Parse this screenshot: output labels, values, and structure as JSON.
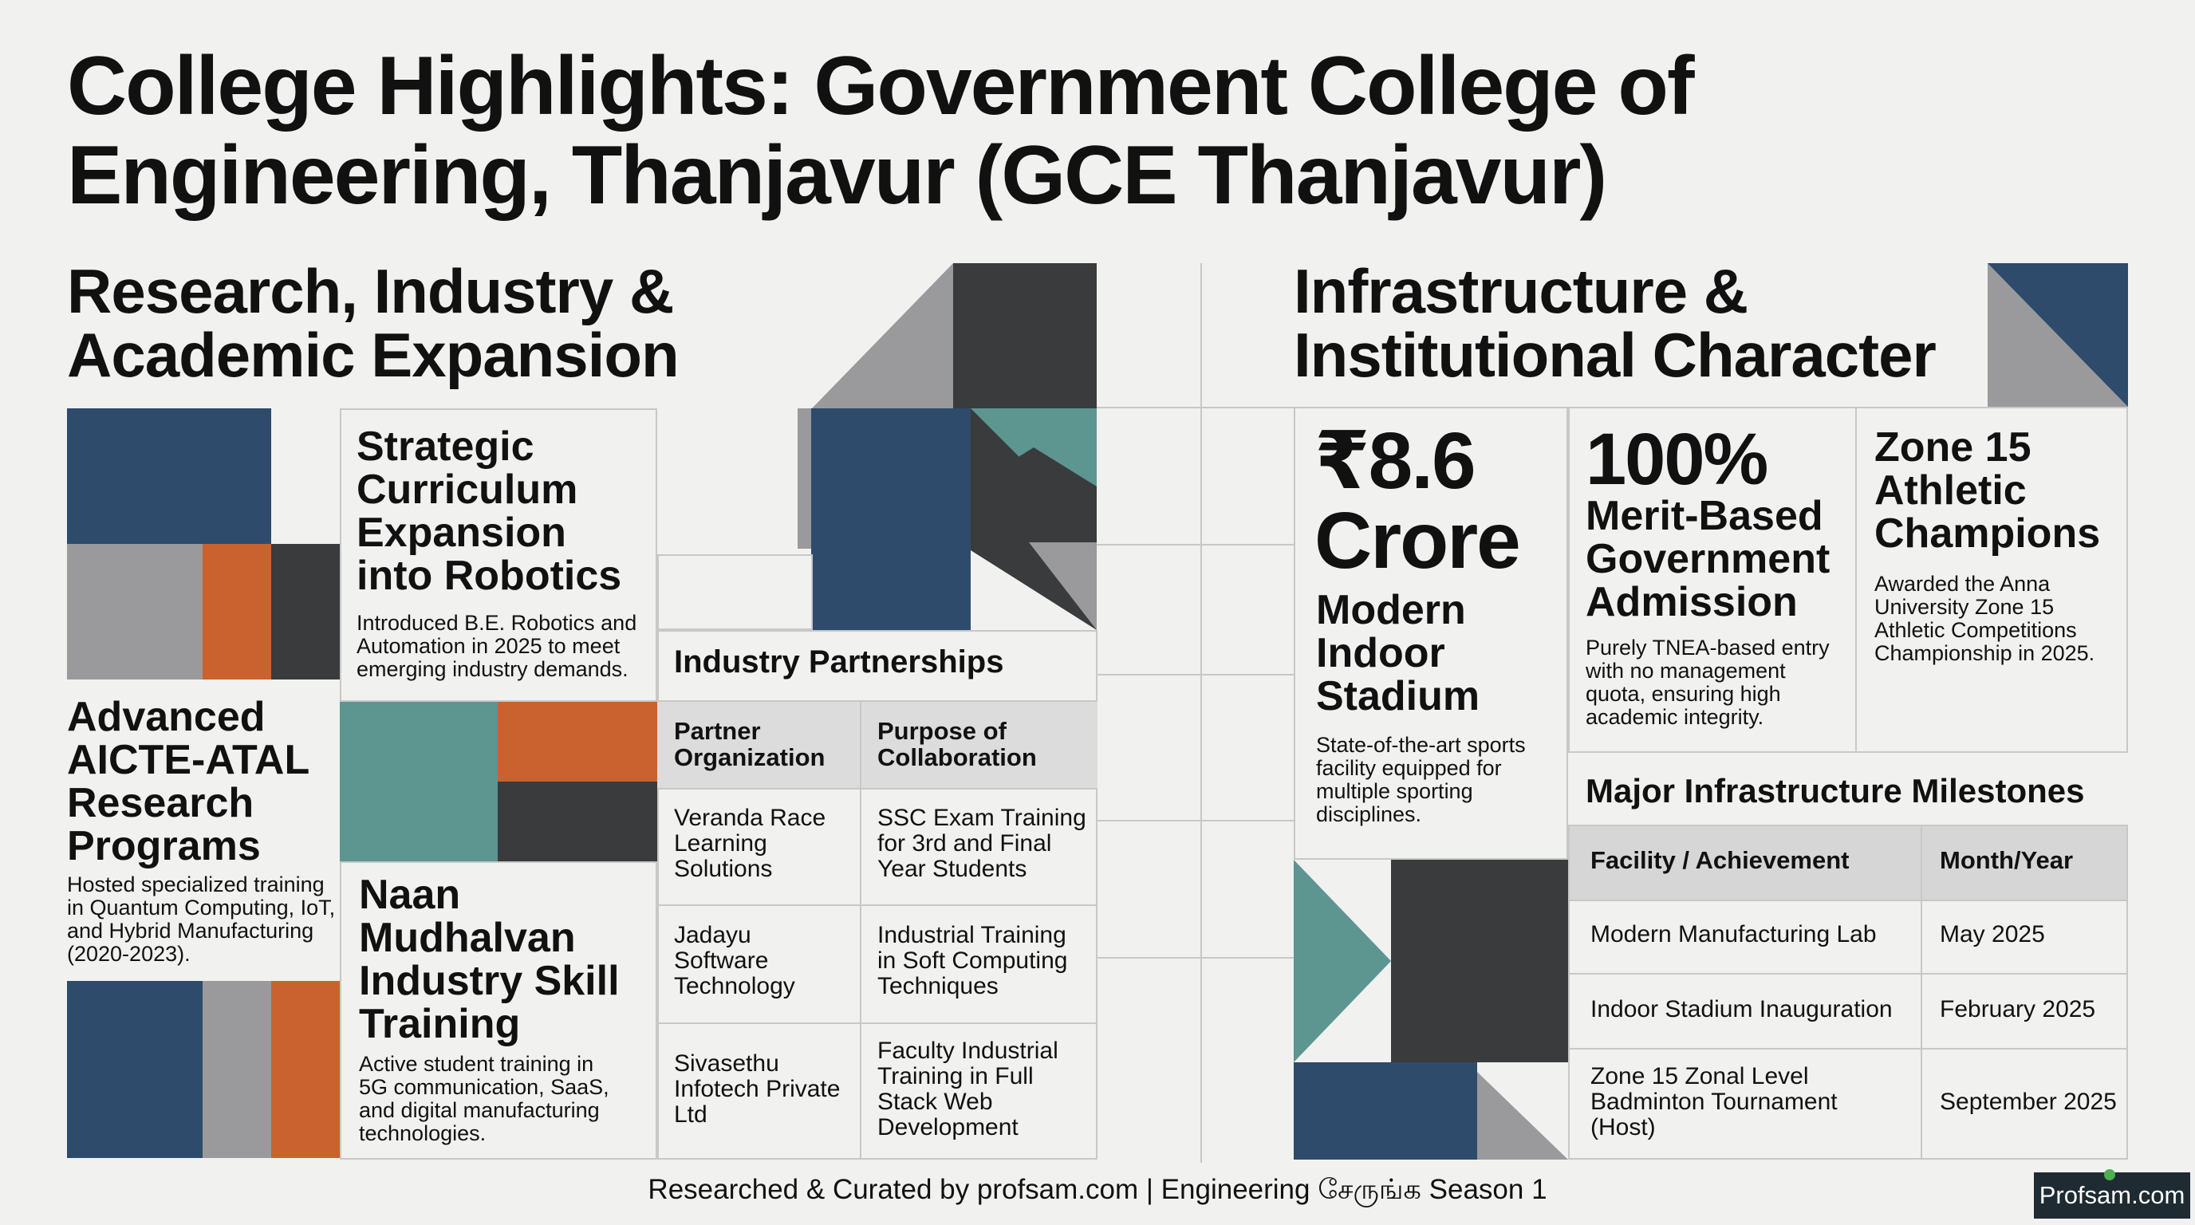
{
  "title_line1": "College Highlights: Government College of",
  "title_line2": "Engineering, Thanjavur (GCE Thanjavur)",
  "left": {
    "heading_line1": "Research, Industry &",
    "heading_line2": "Academic Expansion",
    "curriculum": {
      "title": [
        "Strategic",
        "Curriculum",
        "Expansion",
        "into Robotics"
      ],
      "body": [
        "Introduced B.E. Robotics and",
        "Automation in 2025 to meet",
        "emerging industry demands."
      ]
    },
    "aicte": {
      "title": [
        "Advanced",
        "AICTE-ATAL",
        "Research",
        "Programs"
      ],
      "body": [
        "Hosted specialized training",
        "in Quantum Computing, IoT,",
        "and Hybrid Manufacturing",
        "(2020-2023)."
      ]
    },
    "naan": {
      "title": [
        "Naan",
        "Mudhalvan",
        "Industry Skill",
        "Training"
      ],
      "body": [
        "Active student training in",
        "5G communication, SaaS,",
        "and digital manufacturing",
        "technologies."
      ]
    },
    "partnerships": {
      "title": "Industry Partnerships",
      "headers": [
        [
          "Partner",
          "Organization"
        ],
        [
          "Purpose of",
          "Collaboration"
        ]
      ],
      "rows": [
        [
          [
            "Veranda Race",
            "Learning",
            "Solutions"
          ],
          [
            "SSC Exam Training",
            "for 3rd and Final",
            "Year Students"
          ]
        ],
        [
          [
            "Jadayu",
            "Software",
            "Technology"
          ],
          [
            "Industrial Training",
            "in Soft Computing",
            "Techniques"
          ]
        ],
        [
          [
            "Sivasethu",
            "Infotech Private",
            "Ltd"
          ],
          [
            "Faculty Industrial",
            "Training in Full",
            "Stack Web",
            "Development"
          ]
        ]
      ]
    }
  },
  "right": {
    "heading_line1": "Infrastructure &",
    "heading_line2": "Institutional Character",
    "stadium": {
      "amount_line1": "₹8.6",
      "amount_line2": "Crore",
      "title": [
        "Modern",
        "Indoor",
        "Stadium"
      ],
      "body": [
        "State-of-the-art sports",
        "facility equipped for",
        "multiple sporting",
        "disciplines."
      ]
    },
    "merit": {
      "big": "100%",
      "title": [
        "Merit-Based",
        "Government",
        "Admission"
      ],
      "body": [
        "Purely TNEA-based entry",
        "with no management",
        "quota, ensuring high",
        "academic integrity."
      ]
    },
    "zone": {
      "title": [
        "Zone 15",
        "Athletic",
        "Champions"
      ],
      "body": [
        "Awarded the Anna",
        "University Zone 15",
        "Athletic Competitions",
        "Championship in 2025."
      ]
    },
    "milestones": {
      "title": "Major Infrastructure Milestones",
      "headers": [
        "Facility / Achievement",
        "Month/Year"
      ],
      "rows": [
        [
          [
            "Modern Manufacturing Lab"
          ],
          "May 2025"
        ],
        [
          [
            "Indoor Stadium Inauguration"
          ],
          "February 2025"
        ],
        [
          [
            "Zone 15 Zonal Level",
            "Badminton Tournament",
            "(Host)"
          ],
          "September 2025"
        ]
      ]
    }
  },
  "footer": "Researched & Curated by profsam.com | Engineering சேருங்க Season 1",
  "logo_text": "Profsam.com",
  "colors": {
    "blue": "#2e4b6c",
    "orange": "#c9622f",
    "gray": "#9a9a9c",
    "dark": "#3a3b3d",
    "teal": "#5d9591",
    "background": "#f1f1ef"
  }
}
